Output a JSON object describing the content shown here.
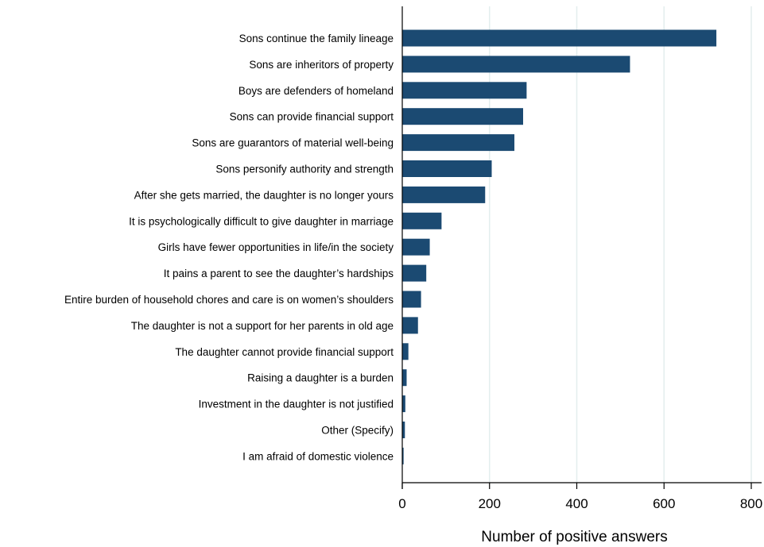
{
  "chart_data": {
    "type": "bar",
    "orientation": "horizontal",
    "categories": [
      "Sons continue the family lineage",
      "Sons are inheritors of property",
      "Boys are defenders of homeland",
      "Sons can provide financial support",
      "Sons are guarantors of material well-being",
      "Sons personify authority and strength",
      "After she gets married, the daughter is no longer yours",
      "It is psychologically difficult to give daughter in marriage",
      "Girls have fewer opportunities in life/in the society",
      "It pains a parent to see the daughter’s hardships",
      "Entire burden of household chores and care is on women’s shoulders",
      "The daughter is not a support for her parents in old age",
      "The daughter cannot provide financial support",
      "Raising a daughter is a burden",
      "Investment in the daughter is not justified",
      "Other (Specify)",
      "I am afraid of domestic violence"
    ],
    "values": [
      720,
      522,
      285,
      277,
      257,
      205,
      190,
      90,
      63,
      55,
      43,
      36,
      14,
      10,
      7,
      6,
      3
    ],
    "xlabel": "Number of positive answers",
    "ylabel": "",
    "title": "",
    "xlim": [
      0,
      800
    ],
    "xticks": [
      0,
      200,
      400,
      600,
      800
    ],
    "xtick_labels": [
      "0",
      "200",
      "400",
      "600",
      "800"
    ],
    "grid": "vertical",
    "colors": {
      "bar": "#1b4a72",
      "grid": "#e3eeee",
      "axis": "#000000"
    }
  }
}
